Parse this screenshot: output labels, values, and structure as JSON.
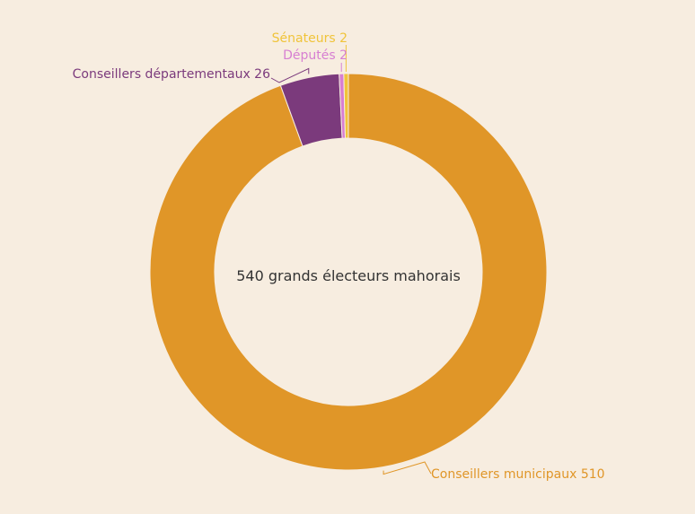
{
  "chart_data": {
    "type": "pie",
    "variant": "donut",
    "center_label": "540 grands électeurs mahorais",
    "slices": [
      {
        "name": "Conseillers municipaux",
        "value": 510,
        "label": "Conseillers municipaux 510",
        "color": "#e09628"
      },
      {
        "name": "Conseillers départementaux",
        "value": 26,
        "label": "Conseillers départementaux 26",
        "color": "#7b3a7c"
      },
      {
        "name": "Députés",
        "value": 2,
        "label": "Députés 2",
        "color": "#d77fd2"
      },
      {
        "name": "Sénateurs",
        "value": 2,
        "label": "Sénateurs 2",
        "color": "#f0c43a"
      }
    ],
    "legend": "none"
  }
}
